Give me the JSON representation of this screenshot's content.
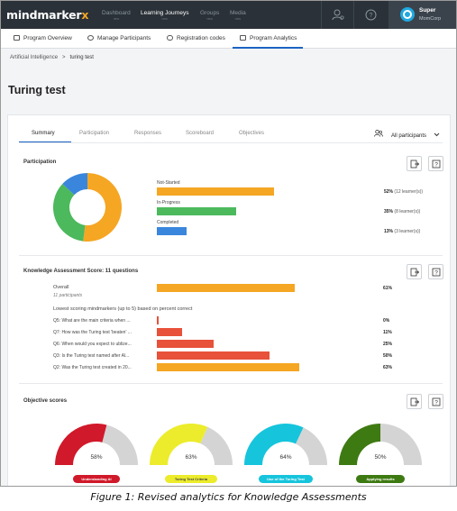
{
  "nav": {
    "logo_main": "mindmarker",
    "logo_x": "x",
    "items": [
      {
        "label": "Dashboard",
        "sub": "new"
      },
      {
        "label": "Learning Journeys",
        "sub": "new"
      },
      {
        "label": "Groups",
        "sub": "new"
      },
      {
        "label": "Media",
        "sub": "new"
      }
    ],
    "user": {
      "name": "Super",
      "org": "MomCorp"
    }
  },
  "subnav": {
    "items": [
      "Program Overview",
      "Manage Participants",
      "Registration codes",
      "Program Analytics"
    ],
    "active": "Program Analytics"
  },
  "breadcrumb": {
    "parent": "Artificial Intelligence",
    "separator": ">",
    "current": "turing test"
  },
  "page_title": "Turing test",
  "tabs": {
    "items": [
      "Summary",
      "Participation",
      "Responses",
      "Scoreboard",
      "Objectives"
    ],
    "active": "Summary",
    "filter_label": "All participants"
  },
  "participation": {
    "title": "Participation",
    "rows": [
      {
        "label": "Not-Started",
        "pct": "52%",
        "count": "(12 learner(s))",
        "value": 0.52,
        "color": "#f5a623"
      },
      {
        "label": "In-Progress",
        "pct": "35%",
        "count": "(8 learner(s))",
        "value": 0.35,
        "color": "#4cb95c"
      },
      {
        "label": "Completed",
        "pct": "13%",
        "count": "(3 learner(s))",
        "value": 0.13,
        "color": "#3a86dd"
      }
    ]
  },
  "knowledge": {
    "title": "Knowledge Assessment Score: 11 questions",
    "overall_label": "Overall",
    "overall_sub": "11 participants",
    "overall_pct": "61%",
    "overall_value": 0.61,
    "overall_color": "#f5a623",
    "lowest_label": "Lowest scoring mindmarkers (up to 5) based on percent correct",
    "questions": [
      {
        "label": "Q5: What are the main criteria when ...",
        "pct": "0%",
        "value": 0.0,
        "color": "#e8513a"
      },
      {
        "label": "Q7: How was the Turing test 'beaten' ...",
        "pct": "11%",
        "value": 0.11,
        "color": "#e8513a"
      },
      {
        "label": "Q6: When would you expect to ublize...",
        "pct": "25%",
        "value": 0.25,
        "color": "#e8513a"
      },
      {
        "label": "Q3: Is the Turing test named after Al...",
        "pct": "50%",
        "value": 0.5,
        "color": "#e8513a"
      },
      {
        "label": "Q2: Was the Turing test created in 20...",
        "pct": "63%",
        "value": 0.63,
        "color": "#f5a623"
      }
    ]
  },
  "objectives": {
    "title": "Objective scores",
    "items": [
      {
        "pct": "58%",
        "value": 0.58,
        "color": "#d0192a",
        "label": "Understanding AI",
        "pill_bg": "#d0192a",
        "pill_fg": "#ffffff"
      },
      {
        "pct": "63%",
        "value": 0.63,
        "color": "#ecec2c",
        "label": "Turing Test Criteria",
        "pill_bg": "#ecec2c",
        "pill_fg": "#444444"
      },
      {
        "pct": "64%",
        "value": 0.64,
        "color": "#16c4dc",
        "label": "Use of the Turing Test",
        "pill_bg": "#16c4dc",
        "pill_fg": "#ffffff"
      },
      {
        "pct": "50%",
        "value": 0.5,
        "color": "#3e7a12",
        "label": "Applying results",
        "pill_bg": "#3e7a12",
        "pill_fg": "#ffffff"
      }
    ]
  },
  "caption": "Figure 1:  Revised analytics for Knowledge Assessments"
}
